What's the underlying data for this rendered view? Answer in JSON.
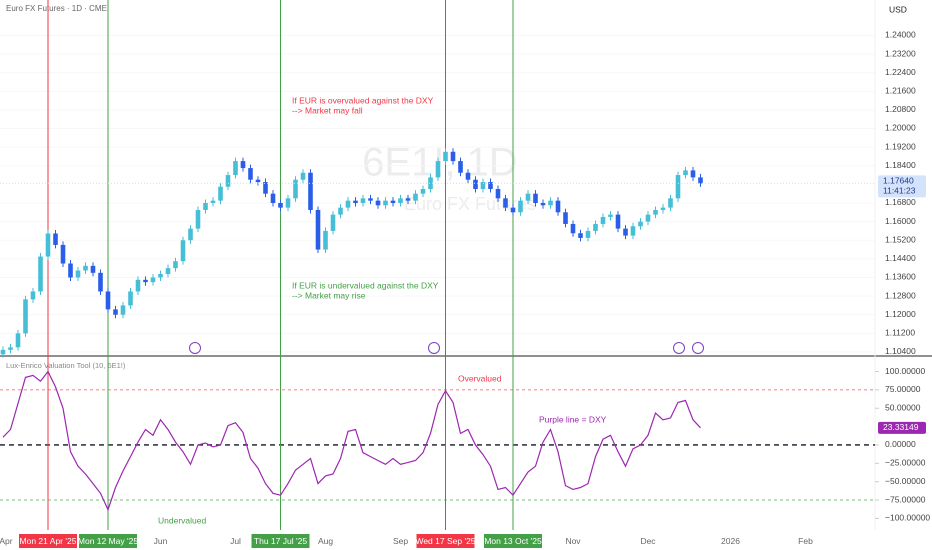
{
  "chart_data": {
    "type": "candlestick",
    "title": "Euro FX Futures · 1D · CME",
    "currency": "USD",
    "watermark": "6E1!, 1D",
    "watermark_sub": "Euro FX Futures",
    "close_label": "1.17640",
    "countdown": "11:41:23",
    "up_color": "#46bfd6",
    "down_color": "#2a5ee8",
    "categories": [
      "Apr",
      null,
      null,
      null,
      null,
      null,
      "Mon 21 Apr '25",
      null,
      null,
      null,
      null,
      null,
      null,
      null,
      "Mon 12 May '25",
      null,
      null,
      null,
      null,
      null,
      null,
      "Jun",
      null,
      null,
      null,
      null,
      null,
      null,
      null,
      null,
      null,
      "Jul",
      null,
      null,
      null,
      null,
      null,
      "Thu 17 Jul '25",
      null,
      null,
      null,
      null,
      null,
      "Aug",
      null,
      null,
      null,
      null,
      null,
      null,
      null,
      null,
      null,
      "Sep",
      null,
      null,
      null,
      null,
      null,
      "Wed 17 Sep '25",
      null,
      null,
      null,
      null,
      null,
      null,
      null,
      null,
      "Mon 13 Oct '25",
      null,
      null,
      null,
      null,
      null,
      null,
      null,
      "Nov",
      null,
      null,
      null,
      null,
      null,
      null,
      null,
      null,
      null,
      "Dec",
      null,
      null,
      null,
      null,
      null,
      null,
      null,
      null,
      null,
      null,
      "2026",
      null,
      null,
      null,
      null,
      null,
      null,
      null,
      null,
      null,
      "Feb",
      null,
      null,
      null,
      null,
      null,
      null,
      null,
      null,
      null
    ],
    "markers": [
      {
        "label": "Mon 21 Apr '25",
        "color": "#f23645"
      },
      {
        "label": "Mon 12 May '25",
        "color": "#43a047"
      },
      {
        "label": "Thu 17 Jul '25",
        "color": "#43a047"
      },
      {
        "label": "Wed 17 Sep '25",
        "color": "#f23645"
      },
      {
        "label": "Mon 13 Oct '25",
        "color": "#43a047"
      }
    ],
    "open": [
      1.103,
      1.1049,
      1.106,
      1.112,
      1.1266,
      1.13,
      1.145,
      1.1549,
      1.15,
      1.142,
      1.136,
      1.139,
      1.141,
      1.138,
      1.13,
      1.1223,
      1.12,
      1.124,
      1.13,
      1.135,
      1.134,
      1.136,
      1.1375,
      1.14,
      1.143,
      1.152,
      1.157,
      1.165,
      1.168,
      1.169,
      1.175,
      1.18,
      1.186,
      1.183,
      1.178,
      1.177,
      1.172,
      1.168,
      1.166,
      1.17,
      1.178,
      1.181,
      1.165,
      1.148,
      1.156,
      1.163,
      1.166,
      1.169,
      1.168,
      1.17,
      1.169,
      1.167,
      1.169,
      1.168,
      1.17,
      1.169,
      1.172,
      1.174,
      1.179,
      1.186,
      1.19,
      1.186,
      1.181,
      1.178,
      1.174,
      1.177,
      1.174,
      1.17,
      1.166,
      1.164,
      1.169,
      1.172,
      1.168,
      1.167,
      1.169,
      1.164,
      1.159,
      1.155,
      1.153,
      1.156,
      1.159,
      1.162,
      1.163,
      1.157,
      1.154,
      1.158,
      1.16,
      1.163,
      1.165,
      1.166,
      1.17,
      1.18,
      1.182,
      1.179,
      null,
      null,
      null,
      null,
      null,
      null,
      null,
      null,
      null,
      null,
      null,
      null,
      null,
      null,
      null,
      null,
      null,
      null,
      null,
      null,
      null,
      null,
      null
    ],
    "high": [
      1.1064,
      1.1075,
      1.1135,
      1.1281,
      1.1315,
      1.1465,
      1.1564,
      1.1564,
      1.1515,
      1.1435,
      1.1405,
      1.1425,
      1.1425,
      1.1395,
      1.1315,
      1.1238,
      1.1255,
      1.1315,
      1.1365,
      1.1365,
      1.1375,
      1.139,
      1.1415,
      1.1445,
      1.1535,
      1.1585,
      1.1665,
      1.1695,
      1.1705,
      1.1765,
      1.1815,
      1.1875,
      1.1875,
      1.1845,
      1.1795,
      1.1785,
      1.1735,
      1.1695,
      1.1715,
      1.1795,
      1.1825,
      1.1825,
      1.1665,
      1.1575,
      1.1645,
      1.1675,
      1.1705,
      1.1705,
      1.1715,
      1.1715,
      1.1705,
      1.1705,
      1.1705,
      1.1715,
      1.1715,
      1.1735,
      1.1755,
      1.1805,
      1.1875,
      1.1915,
      1.1915,
      1.1875,
      1.1825,
      1.1795,
      1.1785,
      1.1785,
      1.1755,
      1.1715,
      1.1675,
      1.1705,
      1.1735,
      1.1735,
      1.1695,
      1.1705,
      1.1705,
      1.1655,
      1.1605,
      1.1565,
      1.1575,
      1.1605,
      1.1635,
      1.1645,
      1.1645,
      1.1585,
      1.1595,
      1.1615,
      1.1645,
      1.1665,
      1.1675,
      1.1715,
      1.1815,
      1.1835,
      1.1835,
      1.1805,
      null,
      null,
      null,
      null,
      null,
      null,
      null,
      null,
      null,
      null,
      null,
      null,
      null,
      null,
      null,
      null,
      null,
      null,
      null,
      null,
      null,
      null,
      null
    ],
    "low": [
      1.1015,
      1.1034,
      1.1045,
      1.1105,
      1.1251,
      1.1285,
      1.1435,
      1.1485,
      1.1405,
      1.1345,
      1.1345,
      1.1375,
      1.1365,
      1.1285,
      1.1208,
      1.1185,
      1.1185,
      1.1225,
      1.1285,
      1.1325,
      1.1325,
      1.1345,
      1.136,
      1.1385,
      1.1415,
      1.1505,
      1.1555,
      1.1635,
      1.1665,
      1.1675,
      1.1735,
      1.1785,
      1.1815,
      1.1765,
      1.1755,
      1.1705,
      1.1665,
      1.1645,
      1.1645,
      1.1685,
      1.1765,
      1.1635,
      1.1465,
      1.1465,
      1.1545,
      1.1615,
      1.1645,
      1.1665,
      1.1665,
      1.1675,
      1.1655,
      1.1655,
      1.1665,
      1.1665,
      1.1675,
      1.1675,
      1.1705,
      1.1725,
      1.1775,
      1.1845,
      1.1845,
      1.1795,
      1.1765,
      1.1725,
      1.1725,
      1.1725,
      1.1685,
      1.1645,
      1.1625,
      1.1625,
      1.1675,
      1.1665,
      1.1655,
      1.1655,
      1.1625,
      1.1575,
      1.1535,
      1.1515,
      1.1515,
      1.1545,
      1.1575,
      1.1605,
      1.1555,
      1.1525,
      1.1525,
      1.1565,
      1.1585,
      1.1615,
      1.1635,
      1.1645,
      1.1685,
      1.1785,
      1.1775,
      1.1749,
      null,
      null,
      null,
      null,
      null,
      null,
      null,
      null,
      null,
      null,
      null,
      null,
      null,
      null,
      null,
      null,
      null,
      null,
      null,
      null,
      null,
      null,
      null
    ],
    "close": [
      1.1049,
      1.106,
      1.112,
      1.1266,
      1.13,
      1.145,
      1.1549,
      1.15,
      1.142,
      1.136,
      1.139,
      1.141,
      1.138,
      1.13,
      1.1223,
      1.12,
      1.124,
      1.13,
      1.135,
      1.134,
      1.136,
      1.1375,
      1.14,
      1.143,
      1.152,
      1.157,
      1.165,
      1.168,
      1.169,
      1.175,
      1.18,
      1.186,
      1.183,
      1.178,
      1.177,
      1.172,
      1.168,
      1.166,
      1.17,
      1.178,
      1.181,
      1.165,
      1.148,
      1.156,
      1.163,
      1.166,
      1.169,
      1.168,
      1.17,
      1.169,
      1.167,
      1.169,
      1.168,
      1.17,
      1.169,
      1.172,
      1.174,
      1.179,
      1.186,
      1.19,
      1.186,
      1.181,
      1.178,
      1.174,
      1.177,
      1.174,
      1.17,
      1.166,
      1.164,
      1.169,
      1.172,
      1.168,
      1.167,
      1.169,
      1.164,
      1.159,
      1.155,
      1.153,
      1.156,
      1.159,
      1.162,
      1.163,
      1.157,
      1.154,
      1.158,
      1.16,
      1.163,
      1.165,
      1.166,
      1.17,
      1.18,
      1.182,
      1.179,
      1.1764,
      null,
      null,
      null,
      null,
      null,
      null,
      null,
      null,
      null,
      null,
      null,
      null,
      null,
      null,
      null,
      null,
      null,
      null,
      null,
      null,
      null,
      null,
      null
    ],
    "ylim": [
      1.1027,
      1.2552
    ],
    "yticks": [
      {
        "value": 1.24,
        "label": "1.24000"
      },
      {
        "value": 1.232,
        "label": "1.23200"
      },
      {
        "value": 1.224,
        "label": "1.22400"
      },
      {
        "value": 1.216,
        "label": "1.21600"
      },
      {
        "value": 1.208,
        "label": "1.20800"
      },
      {
        "value": 1.2,
        "label": "1.20000"
      },
      {
        "value": 1.192,
        "label": "1.19200"
      },
      {
        "value": 1.184,
        "label": "1.18400"
      },
      {
        "value": 1.168,
        "label": "1.16800"
      },
      {
        "value": 1.16,
        "label": "1.16000"
      },
      {
        "value": 1.152,
        "label": "1.15200"
      },
      {
        "value": 1.144,
        "label": "1.14400"
      },
      {
        "value": 1.136,
        "label": "1.13600"
      },
      {
        "value": 1.128,
        "label": "1.12800"
      },
      {
        "value": 1.12,
        "label": "1.12000"
      },
      {
        "value": 1.112,
        "label": "1.11200"
      },
      {
        "value": 1.104,
        "label": "1.10400"
      }
    ],
    "annotations": {
      "over_1": "If EUR is overvalued against the DXY",
      "over_2": "--> Market may fall",
      "under_1": "If EUR is undervalued against the DXY",
      "under_2": "--> Market may rise"
    },
    "indicator": {
      "type": "line",
      "title": "Lux-Enrico Valuation Tool (10, 6E1!)",
      "color": "#9c27b0",
      "values": [
        10.5,
        21,
        56.6,
        92,
        94.7,
        86.8,
        100,
        79,
        50,
        -9.2,
        -28.9,
        -39.5,
        -52.6,
        -65.8,
        -88.2,
        -57.9,
        -35.5,
        -15.8,
        3.9,
        21,
        13.2,
        34.2,
        21,
        3.9,
        -9.2,
        -26.3,
        0,
        2.6,
        -2.6,
        0,
        26.3,
        30.3,
        17.1,
        -18.4,
        -31.6,
        -52.6,
        -65.8,
        -68.4,
        -52.6,
        -34.2,
        -26.3,
        -18.4,
        -52.6,
        -42.1,
        -39.5,
        -18.4,
        18.4,
        21,
        -10.5,
        -15.8,
        -21.1,
        -26.3,
        -18.4,
        -26.3,
        -23.7,
        -21.1,
        -10.5,
        15.8,
        55.3,
        73.7,
        57.9,
        15.8,
        21,
        0,
        -13.2,
        -28.9,
        -60.5,
        -57.9,
        -68.4,
        -52.6,
        -36.8,
        -28.9,
        3.9,
        21,
        -9.2,
        -55.3,
        -60.5,
        -57.9,
        -52.6,
        -15.8,
        7.9,
        13.2,
        -9.2,
        -28.9,
        -5.3,
        0,
        13.2,
        43.4,
        34.2,
        36.8,
        57.9,
        60.5,
        34.2,
        23.33149,
        null,
        null,
        null,
        null,
        null,
        null,
        null,
        null,
        null,
        null,
        null,
        null,
        null,
        null,
        null,
        null,
        null,
        null,
        null,
        null,
        null,
        null,
        null
      ],
      "ylim": [
        -115.8,
        118.4
      ],
      "yticks": [
        {
          "value": 100,
          "label": "100.00000"
        },
        {
          "value": 75,
          "label": "75.00000"
        },
        {
          "value": 50,
          "label": "50.00000"
        },
        {
          "value": 0,
          "label": "0.00000"
        },
        {
          "value": -25,
          "label": "−25.00000"
        },
        {
          "value": -50,
          "label": "−50.00000"
        },
        {
          "value": -75,
          "label": "−75.00000"
        },
        {
          "value": -100,
          "label": "−100.00000"
        }
      ],
      "hlines": [
        {
          "value": 75,
          "color": "#f7525f"
        },
        {
          "value": 0,
          "color": "#131722"
        },
        {
          "value": -75,
          "color": "#4caf50"
        }
      ],
      "annotations": {
        "over": "Overvalued",
        "under": "Undervalued",
        "dxy": "Purple line = DXY"
      }
    }
  }
}
